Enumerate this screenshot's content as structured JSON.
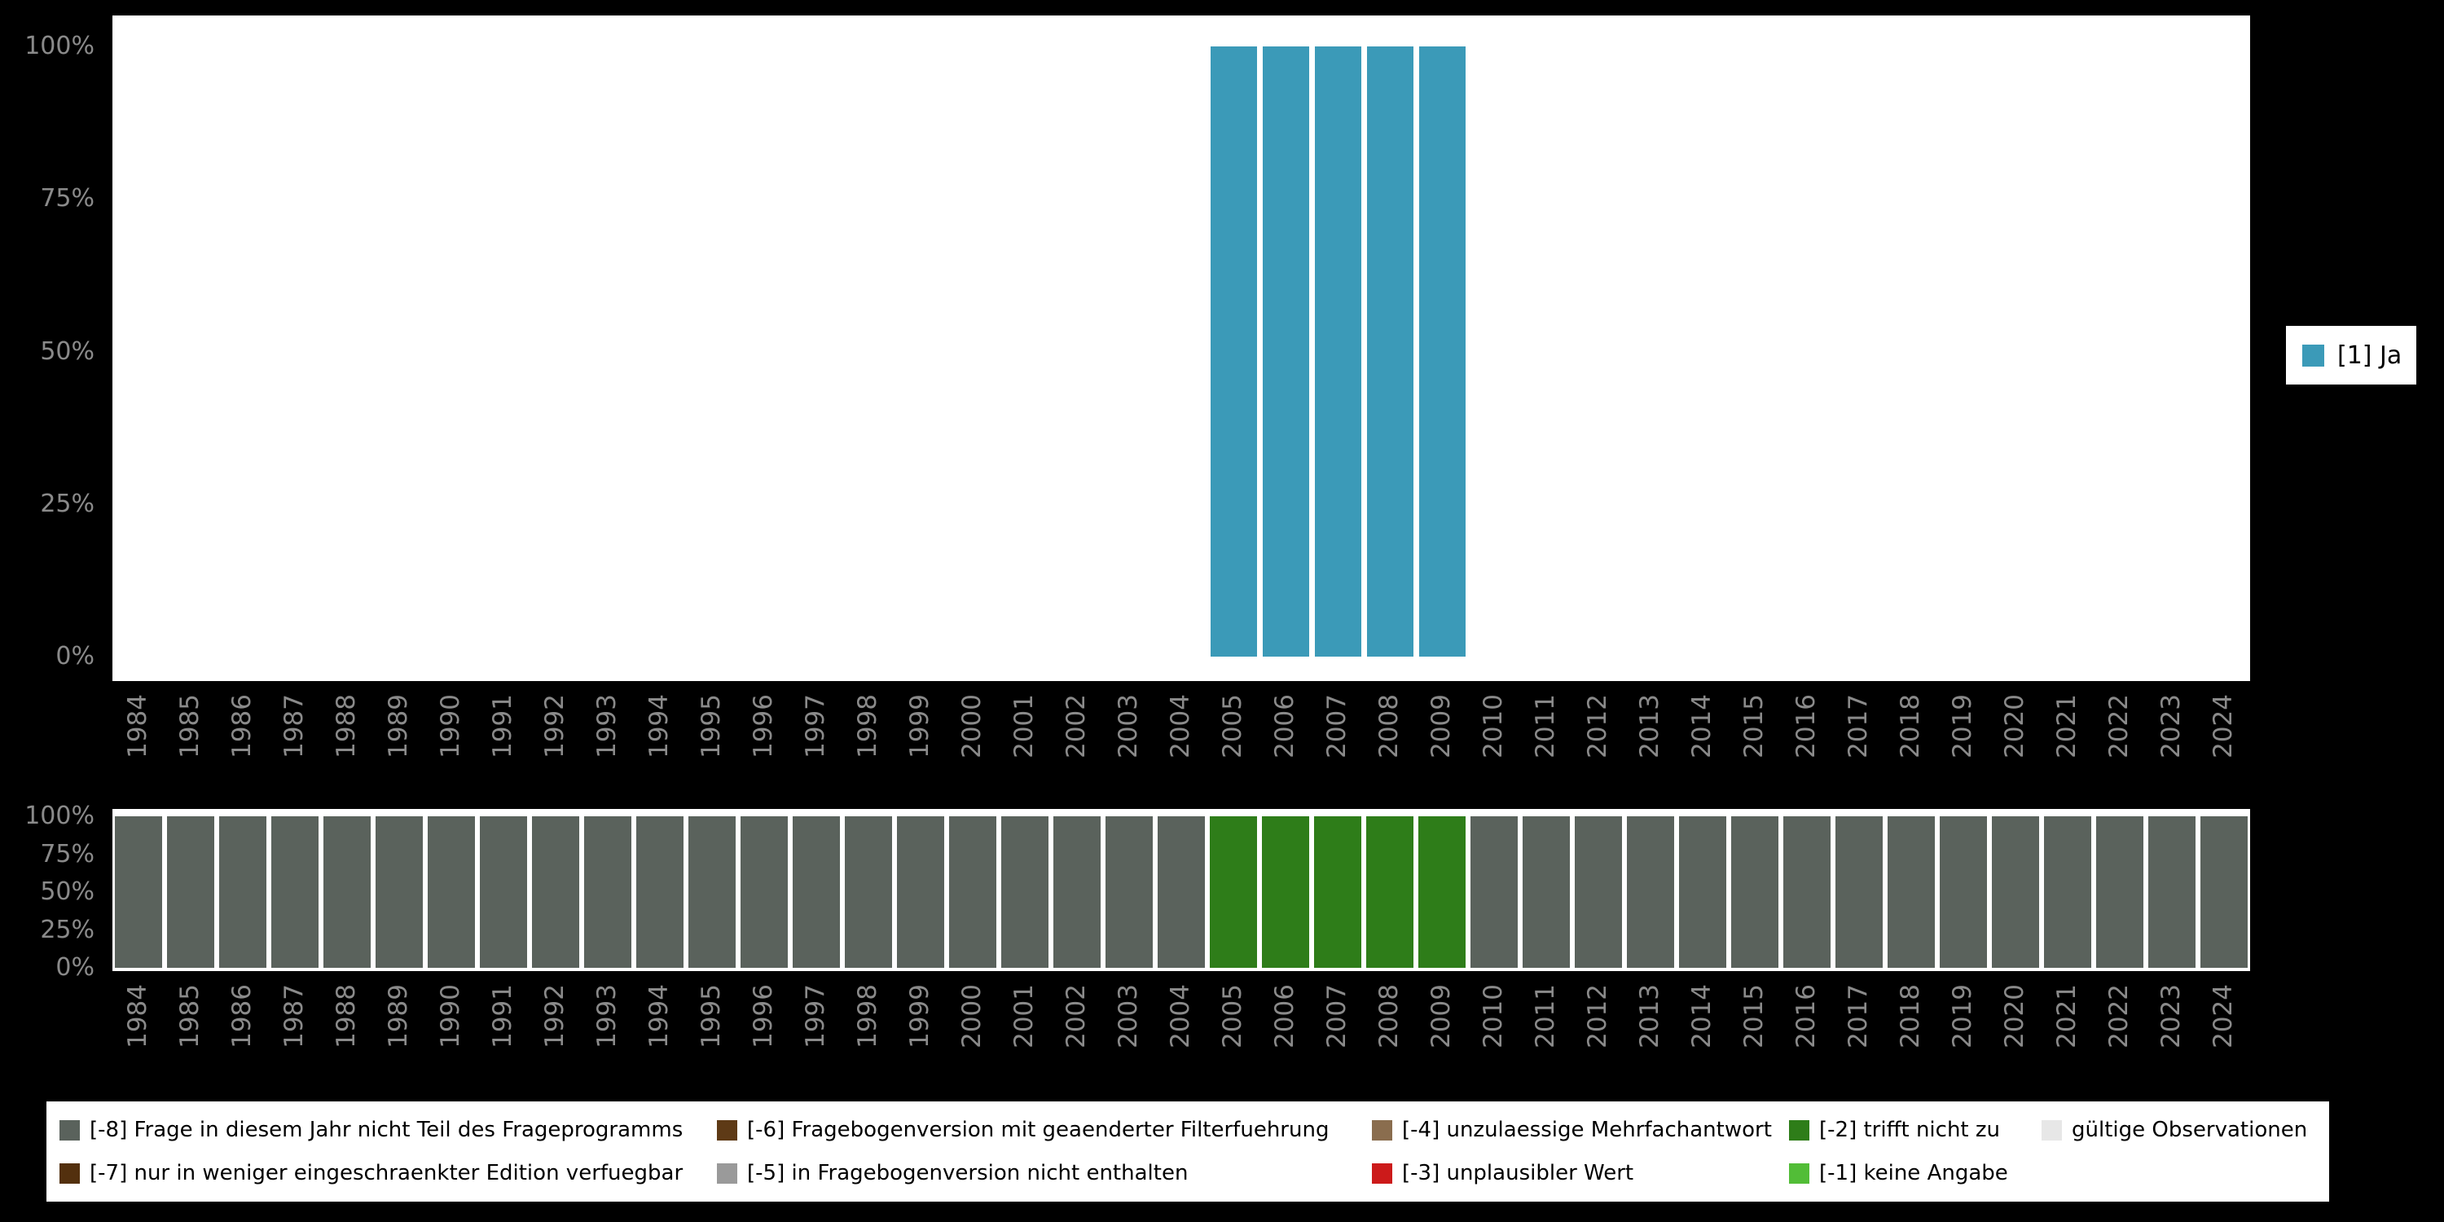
{
  "page": {
    "background_color": "#000000",
    "axis_tick_color": "#8a8a8a",
    "plot_background": "#ffffff"
  },
  "chart_data": [
    {
      "type": "bar",
      "title": "",
      "xlabel": "",
      "ylabel": "",
      "ylim": [
        0,
        100
      ],
      "y_tick_labels": [
        "0%",
        "25%",
        "50%",
        "75%",
        "100%"
      ],
      "x_tick_labels_rotated": true,
      "legend_position": "right",
      "x": [
        "1984",
        "1985",
        "1986",
        "1987",
        "1988",
        "1989",
        "1990",
        "1991",
        "1992",
        "1993",
        "1994",
        "1995",
        "1996",
        "1997",
        "1998",
        "1999",
        "2000",
        "2001",
        "2002",
        "2003",
        "2004",
        "2005",
        "2006",
        "2007",
        "2008",
        "2009",
        "2010",
        "2011",
        "2012",
        "2013",
        "2014",
        "2015",
        "2016",
        "2017",
        "2018",
        "2019",
        "2020",
        "2021",
        "2022",
        "2023",
        "2024"
      ],
      "series": [
        {
          "name": "[1] Ja",
          "color": "#3b9ab8",
          "values": [
            null,
            null,
            null,
            null,
            null,
            null,
            null,
            null,
            null,
            null,
            null,
            null,
            null,
            null,
            null,
            null,
            null,
            null,
            null,
            null,
            null,
            100,
            100,
            100,
            100,
            100,
            null,
            null,
            null,
            null,
            null,
            null,
            null,
            null,
            null,
            null,
            null,
            null,
            null,
            null,
            null
          ]
        }
      ]
    },
    {
      "type": "bar",
      "stacked": true,
      "title": "",
      "xlabel": "",
      "ylabel": "",
      "ylim": [
        0,
        100
      ],
      "y_tick_labels": [
        "0%",
        "25%",
        "50%",
        "75%",
        "100%"
      ],
      "x_tick_labels_rotated": true,
      "x": [
        "1984",
        "1985",
        "1986",
        "1987",
        "1988",
        "1989",
        "1990",
        "1991",
        "1992",
        "1993",
        "1994",
        "1995",
        "1996",
        "1997",
        "1998",
        "1999",
        "2000",
        "2001",
        "2002",
        "2003",
        "2004",
        "2005",
        "2006",
        "2007",
        "2008",
        "2009",
        "2010",
        "2011",
        "2012",
        "2013",
        "2014",
        "2015",
        "2016",
        "2017",
        "2018",
        "2019",
        "2020",
        "2021",
        "2022",
        "2023",
        "2024"
      ],
      "series": [
        {
          "name": "[-8] Frage in diesem Jahr nicht Teil des Frageprogramms",
          "color": "#5a625c",
          "values": [
            100,
            100,
            100,
            100,
            100,
            100,
            100,
            100,
            100,
            100,
            100,
            100,
            100,
            100,
            100,
            100,
            100,
            100,
            100,
            100,
            100,
            0,
            0,
            0,
            0,
            0,
            100,
            100,
            100,
            100,
            100,
            100,
            100,
            100,
            100,
            100,
            100,
            100,
            100,
            100,
            100
          ]
        },
        {
          "name": "[-2] trifft nicht zu",
          "color": "#2e7d19",
          "values": [
            0,
            0,
            0,
            0,
            0,
            0,
            0,
            0,
            0,
            0,
            0,
            0,
            0,
            0,
            0,
            0,
            0,
            0,
            0,
            0,
            0,
            100,
            100,
            100,
            100,
            100,
            0,
            0,
            0,
            0,
            0,
            0,
            0,
            0,
            0,
            0,
            0,
            0,
            0,
            0,
            0
          ]
        }
      ]
    }
  ],
  "missing_legend": {
    "columns": [
      [
        {
          "label": "[-8] Frage in diesem Jahr nicht Teil des Frageprogramms",
          "color": "#5a625c"
        },
        {
          "label": "[-7] nur in weniger eingeschraenkter Edition verfuegbar",
          "color": "#53300e"
        }
      ],
      [
        {
          "label": "[-6] Fragebogenversion mit geaenderter Filterfuehrung",
          "color": "#5e3a16"
        },
        {
          "label": "[-5] in Fragebogenversion nicht enthalten",
          "color": "#9a9a9a"
        }
      ],
      [
        {
          "label": "[-4] unzulaessige Mehrfachantwort",
          "color": "#8a6d4e"
        },
        {
          "label": "[-3] unplausibler Wert",
          "color": "#cc1a1a"
        }
      ],
      [
        {
          "label": "[-2] trifft nicht zu",
          "color": "#2e7d19"
        },
        {
          "label": "[-1] keine Angabe",
          "color": "#52bd37"
        }
      ],
      [
        {
          "label": "gültige Observationen",
          "color": "#e7e7e7"
        }
      ]
    ]
  }
}
